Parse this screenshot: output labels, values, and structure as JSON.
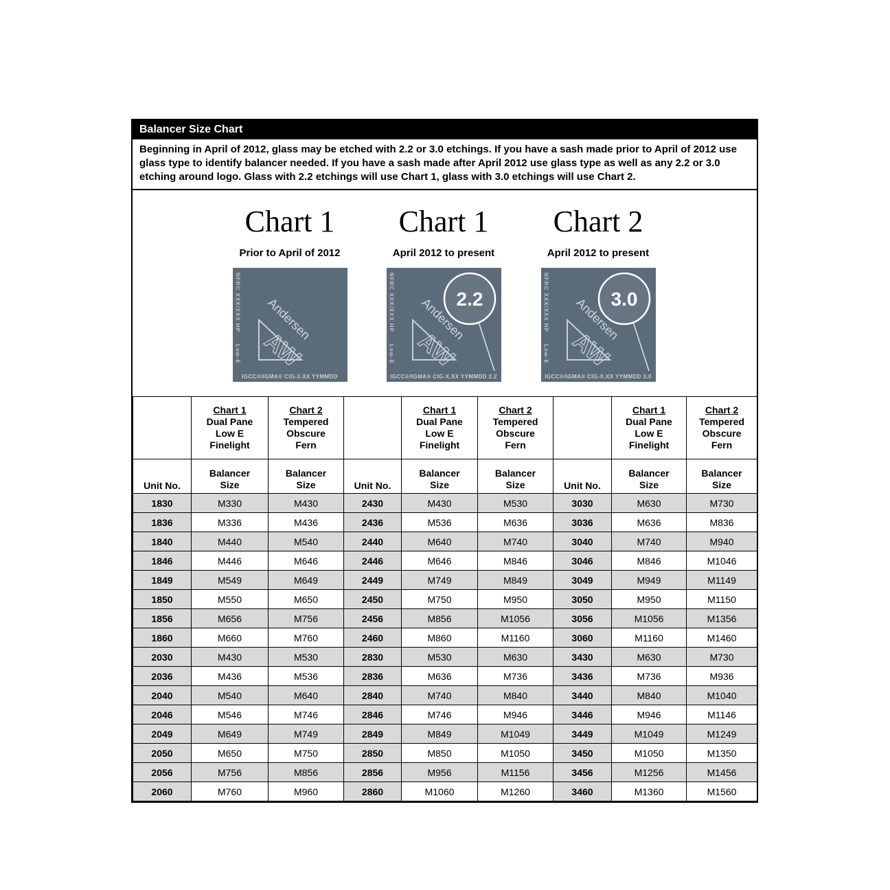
{
  "page": {
    "title": "Balancer Size Chart",
    "intro": "Beginning in April of 2012, glass may be etched with 2.2 or 3.0 etchings.  If you have a sash made prior to April of 2012 use glass type to identify balancer needed.  If you have a sash made after April 2012 use glass type as well as any 2.2 or 3.0 etching around logo. Glass with 2.2 etchings will use Chart 1, glass with 3.0 etchings will use Chart 2."
  },
  "glass_label": {
    "nfrc": "NFRC XXX/XXX HP",
    "lowe": "Low-E",
    "brand": "Andersen",
    "logo": "AW"
  },
  "charts": [
    {
      "title": "Chart 1",
      "subtitle": "Prior to April of 2012",
      "badge": "",
      "bottom": "IGCC®/IGMA® CIG-3.XX YYMMDD"
    },
    {
      "title": "Chart 1",
      "subtitle": "April 2012 to present",
      "badge": "2.2",
      "bottom": "IGCC®/IGMA® CIG-X.XX YYMMDD 2.2"
    },
    {
      "title": "Chart 2",
      "subtitle": "April 2012 to present",
      "badge": "3.0",
      "bottom": "IGCC®/IGMA® CIG-X.XX YYMMDD 3.0"
    }
  ],
  "table": {
    "header": {
      "unit": "Unit No.",
      "chart1_lines": [
        "Chart 1",
        "Dual Pane",
        "Low E",
        "Finelight"
      ],
      "chart2_lines": [
        "Chart 2",
        "Tempered",
        "Obscure",
        "Fern"
      ],
      "balancer_lines": [
        "Balancer",
        "Size"
      ]
    },
    "groups": [
      {
        "rows": [
          [
            "1830",
            "M330",
            "M430"
          ],
          [
            "1836",
            "M336",
            "M436"
          ],
          [
            "1840",
            "M440",
            "M540"
          ],
          [
            "1846",
            "M446",
            "M646"
          ],
          [
            "1849",
            "M549",
            "M649"
          ],
          [
            "1850",
            "M550",
            "M650"
          ],
          [
            "1856",
            "M656",
            "M756"
          ],
          [
            "1860",
            "M660",
            "M760"
          ],
          [
            "2030",
            "M430",
            "M530"
          ],
          [
            "2036",
            "M436",
            "M536"
          ],
          [
            "2040",
            "M540",
            "M640"
          ],
          [
            "2046",
            "M546",
            "M746"
          ],
          [
            "2049",
            "M649",
            "M749"
          ],
          [
            "2050",
            "M650",
            "M750"
          ],
          [
            "2056",
            "M756",
            "M856"
          ],
          [
            "2060",
            "M760",
            "M960"
          ]
        ]
      },
      {
        "rows": [
          [
            "2430",
            "M430",
            "M530"
          ],
          [
            "2436",
            "M536",
            "M636"
          ],
          [
            "2440",
            "M640",
            "M740"
          ],
          [
            "2446",
            "M646",
            "M846"
          ],
          [
            "2449",
            "M749",
            "M849"
          ],
          [
            "2450",
            "M750",
            "M950"
          ],
          [
            "2456",
            "M856",
            "M1056"
          ],
          [
            "2460",
            "M860",
            "M1160"
          ],
          [
            "2830",
            "M530",
            "M630"
          ],
          [
            "2836",
            "M636",
            "M736"
          ],
          [
            "2840",
            "M740",
            "M840"
          ],
          [
            "2846",
            "M746",
            "M946"
          ],
          [
            "2849",
            "M849",
            "M1049"
          ],
          [
            "2850",
            "M850",
            "M1050"
          ],
          [
            "2856",
            "M956",
            "M1156"
          ],
          [
            "2860",
            "M1060",
            "M1260"
          ]
        ]
      },
      {
        "rows": [
          [
            "3030",
            "M630",
            "M730"
          ],
          [
            "3036",
            "M636",
            "M836"
          ],
          [
            "3040",
            "M740",
            "M940"
          ],
          [
            "3046",
            "M846",
            "M1046"
          ],
          [
            "3049",
            "M949",
            "M1149"
          ],
          [
            "3050",
            "M950",
            "M1150"
          ],
          [
            "3056",
            "M1056",
            "M1356"
          ],
          [
            "3060",
            "M1160",
            "M1460"
          ],
          [
            "3430",
            "M630",
            "M730"
          ],
          [
            "3436",
            "M736",
            "M936"
          ],
          [
            "3440",
            "M840",
            "M1040"
          ],
          [
            "3446",
            "M946",
            "M1146"
          ],
          [
            "3449",
            "M1049",
            "M1249"
          ],
          [
            "3450",
            "M1050",
            "M1350"
          ],
          [
            "3456",
            "M1256",
            "M1456"
          ],
          [
            "3460",
            "M1360",
            "M1560"
          ]
        ]
      }
    ]
  },
  "colors": {
    "title_bar_bg": "#000000",
    "glass_bg": "#5c6b7a",
    "row_stripe": "#d9d9d9",
    "border": "#000000"
  }
}
